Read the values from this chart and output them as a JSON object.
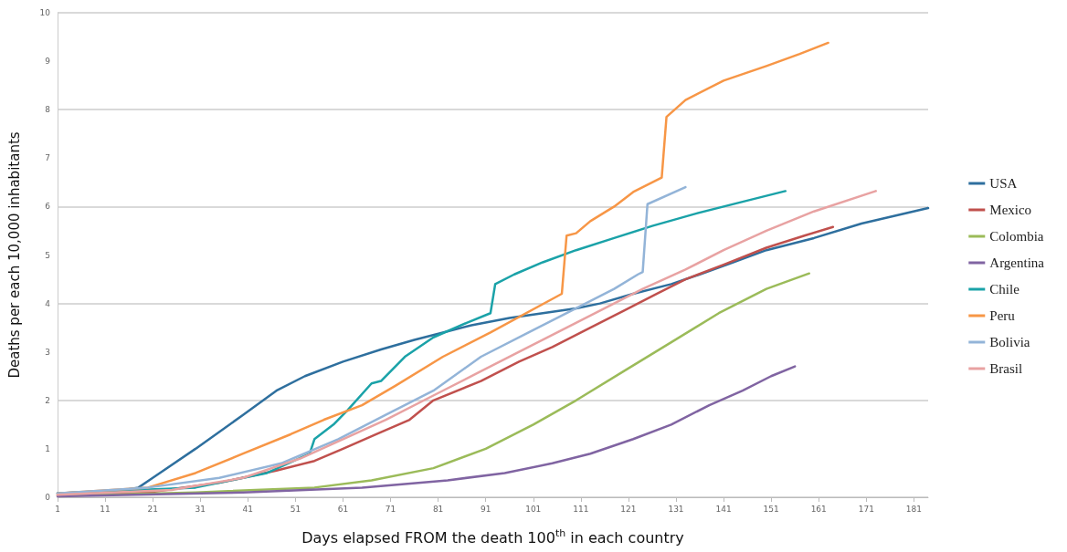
{
  "chart_data": {
    "type": "line",
    "xlabel": "Days elapsed FROM the death 100$^{th}$ in each country",
    "ylabel": "Deaths per each 10,000 inhabitants",
    "xlim": [
      1,
      184
    ],
    "xticks": [
      1,
      11,
      21,
      31,
      41,
      51,
      61,
      71,
      81,
      91,
      101,
      111,
      121,
      131,
      141,
      151,
      161,
      171,
      181
    ],
    "ylim": [
      0,
      10
    ],
    "yticks": [
      0,
      1,
      2,
      3,
      4,
      5,
      6,
      7,
      8,
      9,
      10
    ],
    "grid": "y",
    "legend": "right",
    "marker": "none",
    "line_style": "solid",
    "series": [
      {
        "name": "USA",
        "color": "#2e6f9e",
        "x": [
          1,
          15,
          18,
          21,
          30,
          40,
          47,
          53,
          61,
          69,
          76,
          82,
          88,
          96,
          103,
          110,
          115,
          122,
          130,
          136,
          143,
          150,
          160,
          170,
          184
        ],
        "values": [
          0.08,
          0.15,
          0.2,
          0.4,
          1.0,
          1.7,
          2.2,
          2.5,
          2.8,
          3.05,
          3.25,
          3.4,
          3.55,
          3.7,
          3.8,
          3.9,
          4.0,
          4.2,
          4.4,
          4.6,
          4.85,
          5.1,
          5.35,
          5.65,
          5.97
        ]
      },
      {
        "name": "Mexico",
        "color": "#c0504d",
        "x": [
          1,
          20,
          35,
          47,
          55,
          61,
          68,
          75,
          80,
          90,
          98,
          105,
          113,
          120,
          127,
          133,
          141,
          150,
          158,
          164
        ],
        "values": [
          0.05,
          0.1,
          0.3,
          0.55,
          0.75,
          1.0,
          1.3,
          1.6,
          2.0,
          2.4,
          2.8,
          3.1,
          3.5,
          3.85,
          4.2,
          4.5,
          4.8,
          5.15,
          5.4,
          5.58
        ]
      },
      {
        "name": "Colombia",
        "color": "#9bbb59",
        "x": [
          1,
          30,
          55,
          67,
          80,
          91,
          101,
          110,
          120,
          130,
          140,
          150,
          159
        ],
        "values": [
          0.03,
          0.1,
          0.2,
          0.35,
          0.6,
          1.0,
          1.5,
          2.0,
          2.6,
          3.2,
          3.8,
          4.3,
          4.62
        ]
      },
      {
        "name": "Argentina",
        "color": "#8064a2",
        "x": [
          1,
          40,
          65,
          83,
          95,
          105,
          113,
          122,
          130,
          138,
          145,
          151,
          156
        ],
        "values": [
          0.02,
          0.1,
          0.2,
          0.35,
          0.5,
          0.7,
          0.9,
          1.2,
          1.5,
          1.9,
          2.2,
          2.5,
          2.7
        ]
      },
      {
        "name": "Chile",
        "color": "#1aa2a8",
        "x": [
          1,
          18,
          30,
          45,
          54,
          55,
          59,
          62,
          67,
          69,
          74,
          80,
          87,
          92,
          93,
          97,
          103,
          110,
          118,
          126,
          135,
          145,
          154
        ],
        "values": [
          0.08,
          0.15,
          0.2,
          0.5,
          0.9,
          1.2,
          1.5,
          1.8,
          2.35,
          2.4,
          2.9,
          3.3,
          3.6,
          3.8,
          4.4,
          4.6,
          4.85,
          5.1,
          5.35,
          5.6,
          5.85,
          6.1,
          6.32
        ]
      },
      {
        "name": "Peru",
        "color": "#f79646",
        "x": [
          1,
          20,
          30,
          40,
          50,
          57,
          65,
          72,
          82,
          92,
          107,
          108,
          110,
          113,
          118,
          122,
          128,
          129,
          133,
          141,
          150,
          157,
          163
        ],
        "values": [
          0.08,
          0.2,
          0.5,
          0.9,
          1.3,
          1.6,
          1.9,
          2.3,
          2.9,
          3.4,
          4.2,
          5.4,
          5.45,
          5.7,
          6.0,
          6.3,
          6.6,
          7.85,
          8.2,
          8.6,
          8.9,
          9.15,
          9.38
        ]
      },
      {
        "name": "Bolivia",
        "color": "#93b4d8",
        "x": [
          1,
          20,
          35,
          48,
          60,
          70,
          80,
          90,
          100,
          110,
          118,
          123,
          124,
          125,
          133
        ],
        "values": [
          0.08,
          0.2,
          0.4,
          0.7,
          1.2,
          1.7,
          2.2,
          2.9,
          3.4,
          3.9,
          4.3,
          4.6,
          4.65,
          6.05,
          6.4
        ]
      },
      {
        "name": "Brasil",
        "color": "#e8a2a2",
        "x": [
          1,
          25,
          40,
          52,
          61,
          70,
          80,
          90,
          98,
          108,
          116,
          124,
          133,
          141,
          150,
          160,
          173
        ],
        "values": [
          0.05,
          0.15,
          0.4,
          0.8,
          1.2,
          1.6,
          2.1,
          2.6,
          3.0,
          3.5,
          3.9,
          4.3,
          4.7,
          5.1,
          5.5,
          5.9,
          6.32
        ]
      }
    ]
  }
}
